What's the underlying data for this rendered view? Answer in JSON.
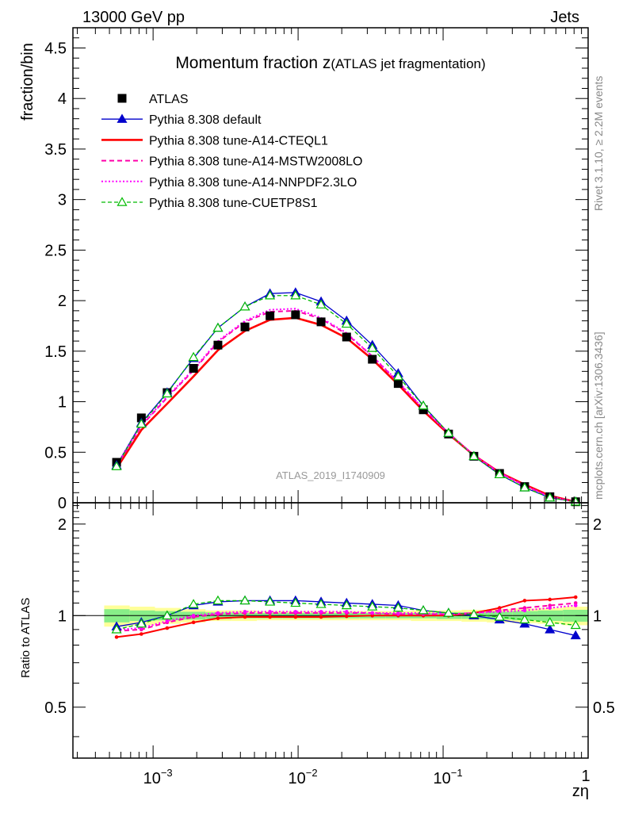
{
  "header": {
    "left": "13000 GeV pp",
    "right": "Jets"
  },
  "side_labels": {
    "rivet": "Rivet 3.1.10, ≥ 2.2M events",
    "mcplots": "mcplots.cern.ch [arXiv:1306.3436]"
  },
  "colors": {
    "atlas": "#000000",
    "default": "#0000cc",
    "cteql1": "#ff0000",
    "mstw": "#ff00aa",
    "nnpdf": "#ff00ff",
    "cuetp8s1": "#00bb00",
    "band_outer": "#ffff99",
    "band_inner": "#88ee88"
  },
  "chart_data": [
    {
      "type": "line",
      "title": "Momentum fraction z",
      "title_suffix": "(ATLAS jet fragmentation)",
      "ylabel": "fraction/bin",
      "watermark": "ATLAS_2019_I1740909",
      "xscale": "log",
      "xlim": [
        0.00028,
        1.0
      ],
      "ylim": [
        0,
        4.7
      ],
      "yticks": [
        0.5,
        1,
        1.5,
        2,
        2.5,
        3,
        3.5,
        4,
        4.5
      ],
      "ytick_labels": [
        "0.5",
        "1",
        "1.5",
        "2",
        "2.5",
        "3",
        "3.5",
        "4",
        "4.5"
      ],
      "y_bottom_tick_label": "0",
      "legend_position": "top-left",
      "x": [
        0.00056,
        0.00083,
        0.00125,
        0.0019,
        0.0028,
        0.0043,
        0.0064,
        0.0096,
        0.0144,
        0.0216,
        0.0325,
        0.049,
        0.073,
        0.109,
        0.163,
        0.245,
        0.365,
        0.545,
        0.82
      ],
      "series": [
        {
          "name": "ATLAS",
          "style": "marker-square",
          "values": [
            0.4,
            0.84,
            1.09,
            1.33,
            1.56,
            1.74,
            1.85,
            1.86,
            1.79,
            1.64,
            1.42,
            1.18,
            0.92,
            0.68,
            0.46,
            0.29,
            0.16,
            0.06,
            0.01
          ]
        },
        {
          "name": "Pythia 8.308 default",
          "style": "solid-triangle",
          "values": [
            0.37,
            0.79,
            1.09,
            1.43,
            1.73,
            1.94,
            2.07,
            2.08,
            1.99,
            1.8,
            1.56,
            1.28,
            0.96,
            0.69,
            0.46,
            0.28,
            0.15,
            0.05,
            0.01
          ]
        },
        {
          "name": "Pythia 8.308 tune-A14-CTEQL1",
          "style": "solid-thick",
          "values": [
            0.34,
            0.72,
            0.98,
            1.25,
            1.51,
            1.7,
            1.81,
            1.83,
            1.76,
            1.63,
            1.42,
            1.17,
            0.91,
            0.68,
            0.47,
            0.3,
            0.18,
            0.07,
            0.01
          ]
        },
        {
          "name": "Pythia 8.308 tune-A14-MSTW2008LO",
          "style": "dashed",
          "values": [
            0.36,
            0.76,
            1.04,
            1.31,
            1.59,
            1.79,
            1.89,
            1.9,
            1.82,
            1.67,
            1.45,
            1.19,
            0.93,
            0.69,
            0.47,
            0.3,
            0.17,
            0.06,
            0.01
          ]
        },
        {
          "name": "Pythia 8.308 tune-A14-NNPDF2.3LO",
          "style": "dotted",
          "values": [
            0.37,
            0.77,
            1.05,
            1.32,
            1.6,
            1.8,
            1.91,
            1.92,
            1.83,
            1.68,
            1.45,
            1.2,
            0.93,
            0.69,
            0.47,
            0.29,
            0.17,
            0.06,
            0.01
          ]
        },
        {
          "name": "Pythia 8.308 tune-CUETP8S1",
          "style": "dashed-open-triangle",
          "values": [
            0.36,
            0.78,
            1.08,
            1.44,
            1.73,
            1.94,
            2.05,
            2.05,
            1.96,
            1.77,
            1.53,
            1.25,
            0.96,
            0.69,
            0.46,
            0.28,
            0.15,
            0.05,
            0.01
          ]
        }
      ]
    },
    {
      "type": "line",
      "ylabel": "Ratio to ATLAS",
      "xlabel": "zη",
      "xscale": "log",
      "xlim": [
        0.00028,
        1.0
      ],
      "ylim": [
        0.34,
        2.35
      ],
      "yticks": [
        0.5,
        1,
        2
      ],
      "ytick_labels": [
        "0.5",
        "1",
        "2"
      ],
      "xticks": [
        0.001,
        0.01,
        0.1,
        1
      ],
      "xtick_labels": [
        "10",
        "10",
        "10",
        "1"
      ],
      "xtick_exponents": [
        "−3",
        "−2",
        "−1",
        ""
      ],
      "x": [
        0.00056,
        0.00083,
        0.00125,
        0.0019,
        0.0028,
        0.0043,
        0.0064,
        0.0096,
        0.0144,
        0.0216,
        0.0325,
        0.049,
        0.073,
        0.109,
        0.163,
        0.245,
        0.365,
        0.545,
        0.82
      ],
      "band_edges": [
        0.00046,
        0.00069,
        0.00103,
        0.00155,
        0.0023,
        0.0035,
        0.0052,
        0.0078,
        0.0117,
        0.0176,
        0.0264,
        0.04,
        0.06,
        0.09,
        0.134,
        0.2,
        0.3,
        0.45,
        0.67,
        1.0
      ],
      "band_outer_half": [
        0.08,
        0.07,
        0.06,
        0.05,
        0.04,
        0.04,
        0.035,
        0.035,
        0.035,
        0.035,
        0.035,
        0.035,
        0.04,
        0.04,
        0.045,
        0.05,
        0.055,
        0.06,
        0.07
      ],
      "band_inner_half": [
        0.05,
        0.04,
        0.035,
        0.03,
        0.025,
        0.02,
        0.02,
        0.02,
        0.02,
        0.02,
        0.02,
        0.02,
        0.02,
        0.025,
        0.025,
        0.03,
        0.035,
        0.04,
        0.045
      ],
      "series": [
        {
          "name": "Pythia 8.308 default",
          "values": [
            0.92,
            0.95,
            1.0,
            1.08,
            1.11,
            1.12,
            1.12,
            1.12,
            1.11,
            1.1,
            1.09,
            1.08,
            1.04,
            1.02,
            1.0,
            0.97,
            0.94,
            0.9,
            0.86
          ]
        },
        {
          "name": "Pythia 8.308 tune-A14-CTEQL1",
          "values": [
            0.85,
            0.87,
            0.91,
            0.95,
            0.98,
            0.99,
            0.99,
            0.99,
            0.99,
            0.995,
            1.0,
            1.0,
            1.0,
            1.0,
            1.02,
            1.06,
            1.12,
            1.13,
            1.15
          ]
        },
        {
          "name": "Pythia 8.308 tune-A14-MSTW2008LO",
          "values": [
            0.89,
            0.9,
            0.95,
            0.99,
            1.01,
            1.02,
            1.02,
            1.02,
            1.02,
            1.02,
            1.02,
            1.01,
            1.01,
            1.01,
            1.02,
            1.04,
            1.06,
            1.08,
            1.1
          ]
        },
        {
          "name": "Pythia 8.308 tune-A14-NNPDF2.3LO",
          "values": [
            0.9,
            0.91,
            0.96,
            1.0,
            1.02,
            1.03,
            1.03,
            1.03,
            1.03,
            1.03,
            1.02,
            1.02,
            1.02,
            1.01,
            1.02,
            1.03,
            1.04,
            1.06,
            1.08
          ]
        },
        {
          "name": "Pythia 8.308 tune-CUETP8S1",
          "values": [
            0.9,
            0.94,
            1.0,
            1.09,
            1.12,
            1.12,
            1.11,
            1.1,
            1.09,
            1.08,
            1.07,
            1.06,
            1.04,
            1.02,
            1.01,
            0.99,
            0.97,
            0.95,
            0.93
          ]
        }
      ]
    }
  ]
}
